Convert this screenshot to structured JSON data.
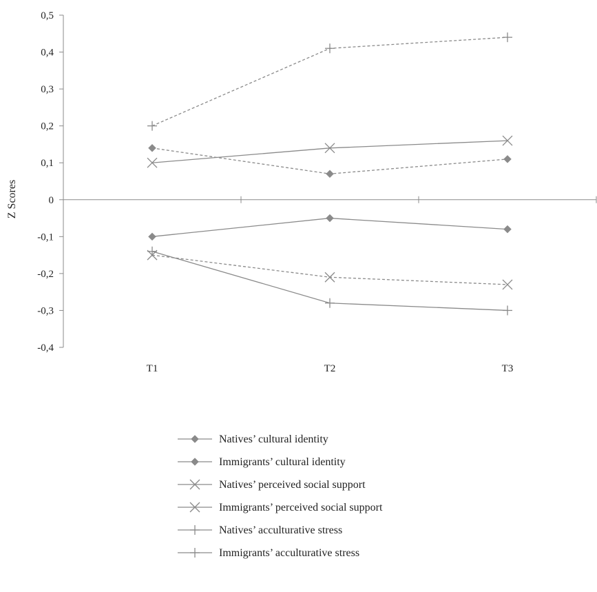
{
  "chart_data": {
    "type": "line",
    "categories": [
      "T1",
      "T2",
      "T3"
    ],
    "ylabel": "Z Scores",
    "ylim": [
      -0.4,
      0.5
    ],
    "yticks": [
      "0,5",
      "0,4",
      "0,3",
      "0,2",
      "0,1",
      "0",
      "-0,1",
      "-0,2",
      "-0,3",
      "-0,4"
    ],
    "ytick_values": [
      0.5,
      0.4,
      0.3,
      0.2,
      0.1,
      0,
      -0.1,
      -0.2,
      -0.3,
      -0.4
    ],
    "legend_position": "bottom",
    "series": [
      {
        "name": "Natives’ cultural identity",
        "values": [
          -0.1,
          -0.05,
          -0.08
        ],
        "marker": "diamond",
        "dash": "solid",
        "color": "#8a8a8a"
      },
      {
        "name": "Immigrants’ cultural identity",
        "values": [
          0.14,
          0.07,
          0.11
        ],
        "marker": "diamond",
        "dash": "dashed",
        "color": "#8a8a8a"
      },
      {
        "name": "Natives’ perceived social support",
        "values": [
          0.1,
          0.14,
          0.16
        ],
        "marker": "x",
        "dash": "solid",
        "color": "#8a8a8a"
      },
      {
        "name": "Immigrants’ perceived social support",
        "values": [
          -0.15,
          -0.21,
          -0.23
        ],
        "marker": "x",
        "dash": "dashed",
        "color": "#8a8a8a"
      },
      {
        "name": "Natives’ acculturative stress",
        "values": [
          -0.14,
          -0.28,
          -0.3
        ],
        "marker": "plus",
        "dash": "solid",
        "color": "#8a8a8a"
      },
      {
        "name": "Immigrants’ acculturative stress",
        "values": [
          0.2,
          0.41,
          0.44
        ],
        "marker": "plus",
        "dash": "dashed",
        "color": "#8a8a8a"
      }
    ]
  }
}
